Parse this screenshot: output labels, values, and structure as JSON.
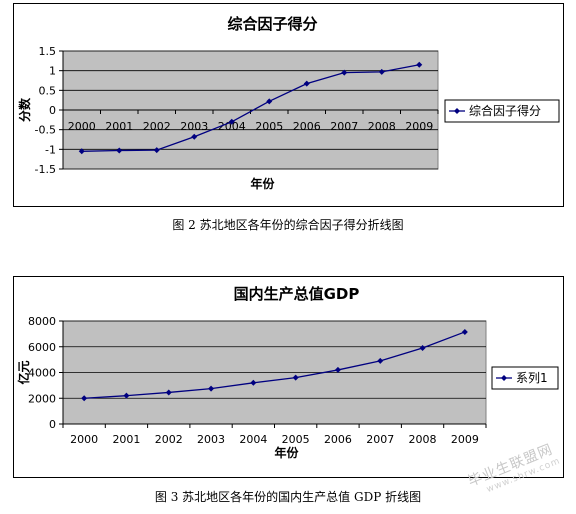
{
  "chart_data": [
    {
      "type": "line",
      "title": "综合因子得分",
      "xlabel": "年份",
      "ylabel": "分数",
      "x": [
        "2000",
        "2001",
        "2002",
        "2003",
        "2004",
        "2005",
        "2006",
        "2007",
        "2008",
        "2009"
      ],
      "series": [
        {
          "name": "综合因子得分",
          "values": [
            -1.05,
            -1.03,
            -1.02,
            -0.68,
            -0.3,
            0.22,
            0.67,
            0.95,
            0.97,
            1.15
          ]
        }
      ],
      "ylim": [
        -1.5,
        1.5
      ],
      "yticks": [
        "1.5",
        "1",
        "0.5",
        "0",
        "-0.5",
        "-1",
        "-1.5"
      ],
      "legend": "right",
      "grid": true,
      "plot_bg": "#c0c0c0",
      "line_color": "#000080"
    },
    {
      "type": "line",
      "title": "国内生产总值GDP",
      "xlabel": "年份",
      "ylabel": "亿元",
      "x": [
        "2000",
        "2001",
        "2002",
        "2003",
        "2004",
        "2005",
        "2006",
        "2007",
        "2008",
        "2009"
      ],
      "series": [
        {
          "name": "系列1",
          "values": [
            2000,
            2200,
            2450,
            2750,
            3200,
            3600,
            4200,
            4900,
            5900,
            7150
          ]
        }
      ],
      "ylim": [
        0,
        8000
      ],
      "yticks": [
        "8000",
        "6000",
        "4000",
        "2000",
        "0"
      ],
      "legend": "right",
      "grid": true,
      "plot_bg": "#c0c0c0",
      "line_color": "#000080"
    }
  ],
  "captions": {
    "fig2": "图 2  苏北地区各年份的综合因子得分折线图",
    "fig3": "图 3  苏北地区各年份的国内生产总值 GDP 折线图"
  },
  "watermark": {
    "text": "毕业生联盟网",
    "sub": "www.shrw.com"
  }
}
